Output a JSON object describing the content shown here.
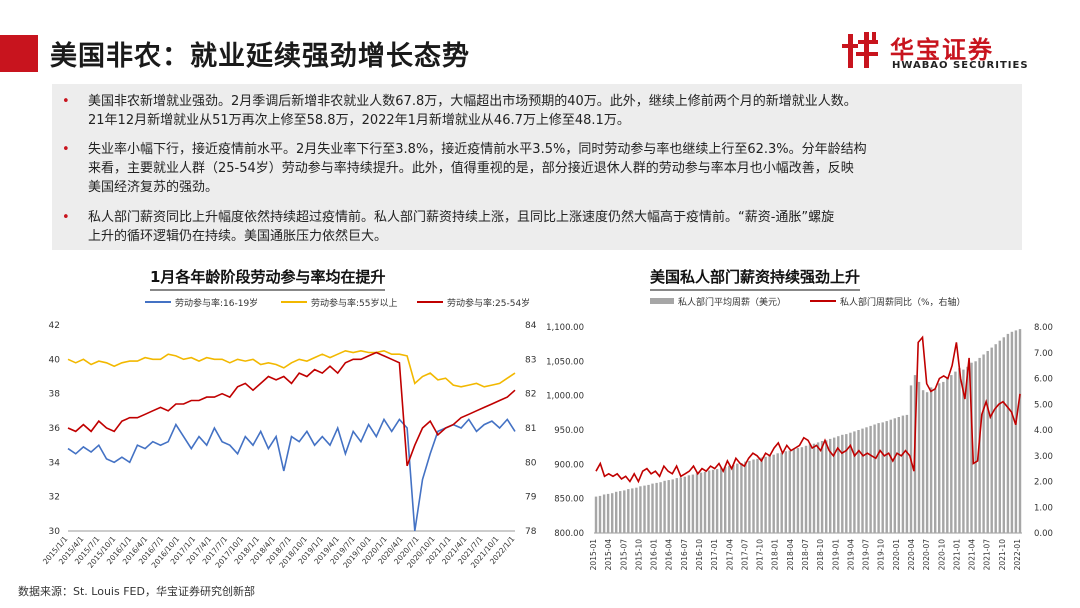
{
  "header": {
    "title": "美国非农：就业延续强劲增长态势",
    "accent_color": "#c8141e"
  },
  "logo": {
    "name_cn": "华宝证券",
    "name_en": "HWABAO SECURITIES",
    "icon": "hwabao-logo-icon"
  },
  "summary": {
    "bullets": [
      {
        "lines": [
          "美国非农新增就业强劲。2月季调后新增非农就业人数67.8万，大幅超出市场预期的40万。此外，继续上修前两个月的新增就业人数。",
          "21年12月新增就业从51万再次上修至58.8万，2022年1月新增就业从46.7万上修至48.1万。"
        ]
      },
      {
        "lines": [
          "失业率小幅下行，接近疫情前水平。2月失业率下行至3.8%，接近疫情前水平3.5%，同时劳动参与率也继续上行至62.3%。分年龄结构",
          "来看，主要就业人群（25-54岁）劳动参与率持续提升。此外，值得重视的是，部分接近退休人群的劳动参与率本月也小幅改善，反映",
          "美国经济复苏的强劲。"
        ]
      },
      {
        "lines": [
          "私人部门薪资同比上升幅度依然持续超过疫情前。私人部门薪资持续上涨，且同比上涨速度仍然大幅高于疫情前。“薪资-通胀”螺旋",
          "上升的循环逻辑仍在持续。美国通胀压力依然巨大。"
        ]
      }
    ]
  },
  "footer": {
    "source": "数据来源：St. Louis FED，华宝证券研究创新部"
  },
  "chart_data": [
    {
      "type": "line",
      "title": "1月各年龄阶段劳动参与率均在提升",
      "x_ticks": [
        "2015/1/1",
        "2015/4/1",
        "2015/7/1",
        "2015/10/1",
        "2016/1/1",
        "2016/4/1",
        "2016/7/1",
        "2016/10/1",
        "2017/1/1",
        "2017/4/1",
        "2017/7/1",
        "2017/10/1",
        "2018/1/1",
        "2018/4/1",
        "2018/7/1",
        "2018/10/1",
        "2019/1/1",
        "2019/4/1",
        "2019/7/1",
        "2019/10/1",
        "2020/1/1",
        "2020/4/1",
        "2020/7/1",
        "2020/10/1",
        "2021/1/1",
        "2021/4/1",
        "2021/7/1",
        "2021/10/1",
        "2022/1/1"
      ],
      "ylim_left": [
        30,
        42
      ],
      "yticks_left": [
        30,
        32,
        34,
        36,
        38,
        40,
        42
      ],
      "ylim_right": [
        78,
        84
      ],
      "yticks_right": [
        78,
        79,
        80,
        81,
        82,
        83,
        84
      ],
      "series": [
        {
          "name": "劳动参与率:16-19岁",
          "color": "#4472c4",
          "axis": "left",
          "values": [
            34.8,
            34.5,
            34.9,
            34.6,
            35.0,
            34.2,
            34.0,
            34.3,
            34.0,
            35.0,
            34.8,
            35.2,
            35.0,
            35.2,
            36.2,
            35.5,
            34.8,
            35.5,
            35.0,
            36.0,
            35.2,
            35.0,
            34.5,
            35.5,
            35.0,
            35.8,
            34.8,
            35.5,
            33.5,
            35.5,
            35.2,
            35.8,
            35.0,
            35.5,
            35.0,
            36.0,
            34.5,
            35.8,
            35.2,
            36.2,
            35.5,
            36.5,
            35.8,
            36.5,
            36.0,
            30.0,
            33.0,
            34.5,
            35.8,
            36.0,
            36.2,
            36.0,
            36.5,
            35.8,
            36.2,
            36.4,
            36.0,
            36.5,
            35.8
          ]
        },
        {
          "name": "劳动参与率:55岁以上",
          "color": "#f2b800",
          "axis": "left",
          "values": [
            40.0,
            39.8,
            40.0,
            39.7,
            39.9,
            39.8,
            39.6,
            39.8,
            39.9,
            39.9,
            40.1,
            40.0,
            40.0,
            40.3,
            40.2,
            40.0,
            40.1,
            39.9,
            40.1,
            40.0,
            40.0,
            39.8,
            40.0,
            39.9,
            40.0,
            39.7,
            39.8,
            39.7,
            39.5,
            39.8,
            40.0,
            39.9,
            40.1,
            40.3,
            40.1,
            40.3,
            40.5,
            40.4,
            40.5,
            40.4,
            40.4,
            40.5,
            40.3,
            40.3,
            40.2,
            38.6,
            39.0,
            39.2,
            38.8,
            38.9,
            38.5,
            38.4,
            38.5,
            38.6,
            38.4,
            38.5,
            38.6,
            38.9,
            39.2
          ]
        },
        {
          "name": "劳动参与率:25-54岁",
          "color": "#c00000",
          "axis": "right",
          "values": [
            81.0,
            80.9,
            81.1,
            80.9,
            81.2,
            81.0,
            80.9,
            81.2,
            81.3,
            81.3,
            81.4,
            81.5,
            81.6,
            81.5,
            81.7,
            81.7,
            81.8,
            81.8,
            81.9,
            81.9,
            82.0,
            81.9,
            82.2,
            82.3,
            82.1,
            82.3,
            82.5,
            82.4,
            82.5,
            82.3,
            82.6,
            82.5,
            82.7,
            82.6,
            82.8,
            82.6,
            82.9,
            83.0,
            83.0,
            83.1,
            83.2,
            83.1,
            83.0,
            82.9,
            79.9,
            80.5,
            81.0,
            81.2,
            80.8,
            81.0,
            81.1,
            81.3,
            81.4,
            81.5,
            81.6,
            81.7,
            81.8,
            81.9,
            82.1
          ]
        }
      ]
    },
    {
      "type": "bar",
      "title": "美国私人部门薪资持续强劲上升",
      "x_ticks": [
        "2015-01",
        "2015-04",
        "2015-07",
        "2015-10",
        "2016-01",
        "2016-04",
        "2016-07",
        "2016-10",
        "2017-01",
        "2017-04",
        "2017-07",
        "2017-10",
        "2018-01",
        "2018-04",
        "2018-07",
        "2018-10",
        "2019-01",
        "2019-04",
        "2019-07",
        "2019-10",
        "2020-01",
        "2020-04",
        "2020-07",
        "2020-10",
        "2021-01",
        "2021-04",
        "2021-07",
        "2021-10",
        "2022-01"
      ],
      "ylim_left": [
        800,
        1100
      ],
      "yticks_left": [
        "800.00",
        "850.00",
        "900.00",
        "950.00",
        "1,000.00",
        "1,050.00",
        "1,100.00"
      ],
      "ylim_right": [
        0,
        8
      ],
      "yticks_right": [
        "0.00",
        "1.00",
        "2.00",
        "3.00",
        "4.00",
        "5.00",
        "6.00",
        "7.00",
        "8.00"
      ],
      "series": [
        {
          "name": "私人部门平均周薪（美元）",
          "color": "#a6a6a6",
          "axis": "left",
          "type": "bar",
          "values": [
            853,
            854,
            856,
            857,
            858,
            860,
            861,
            862,
            864,
            865,
            866,
            868,
            869,
            870,
            872,
            873,
            874,
            876,
            877,
            878,
            880,
            881,
            882,
            884,
            885,
            887,
            888,
            889,
            891,
            892,
            893,
            895,
            896,
            898,
            899,
            901,
            902,
            904,
            905,
            907,
            908,
            910,
            911,
            913,
            914,
            916,
            917,
            919,
            920,
            922,
            924,
            925,
            927,
            929,
            930,
            932,
            934,
            935,
            937,
            939,
            941,
            943,
            944,
            946,
            948,
            950,
            952,
            954,
            956,
            958,
            960,
            961,
            963,
            965,
            967,
            969,
            971,
            972,
            1015,
            1030,
            1020,
            1008,
            1005,
            1012,
            1010,
            1018,
            1020,
            1025,
            1030,
            1035,
            1040,
            1038,
            1042,
            1048,
            1050,
            1055,
            1060,
            1065,
            1070,
            1075,
            1080,
            1085,
            1090,
            1093,
            1095,
            1097
          ]
        },
        {
          "name": "私人部门周薪同比（%，右轴）",
          "color": "#c00000",
          "axis": "right",
          "type": "line",
          "values": [
            2.4,
            2.7,
            2.2,
            2.3,
            2.2,
            2.3,
            2.1,
            2.2,
            2.0,
            2.3,
            2.0,
            2.4,
            2.5,
            2.3,
            2.4,
            2.2,
            2.6,
            2.4,
            2.3,
            2.6,
            2.2,
            2.3,
            2.4,
            2.6,
            2.3,
            2.5,
            2.4,
            2.6,
            2.5,
            2.7,
            2.4,
            2.8,
            2.5,
            2.9,
            2.7,
            2.6,
            2.9,
            3.1,
            3.0,
            2.8,
            3.1,
            3.0,
            3.3,
            3.5,
            3.1,
            3.4,
            3.2,
            3.3,
            3.4,
            3.7,
            3.6,
            3.3,
            3.4,
            3.2,
            3.6,
            3.2,
            3.0,
            3.3,
            3.1,
            3.2,
            3.4,
            3.0,
            3.2,
            3.0,
            3.1,
            3.0,
            2.9,
            3.2,
            3.0,
            3.1,
            2.8,
            3.1,
            3.0,
            3.2,
            3.0,
            2.4,
            7.4,
            7.6,
            5.8,
            5.5,
            5.6,
            6.0,
            6.1,
            6.0,
            6.5,
            7.4,
            6.0,
            5.2,
            6.8,
            2.7,
            2.8,
            4.6,
            5.1,
            4.5,
            4.8,
            5.0,
            5.1,
            4.9,
            4.7,
            4.2,
            5.4
          ]
        }
      ]
    }
  ]
}
